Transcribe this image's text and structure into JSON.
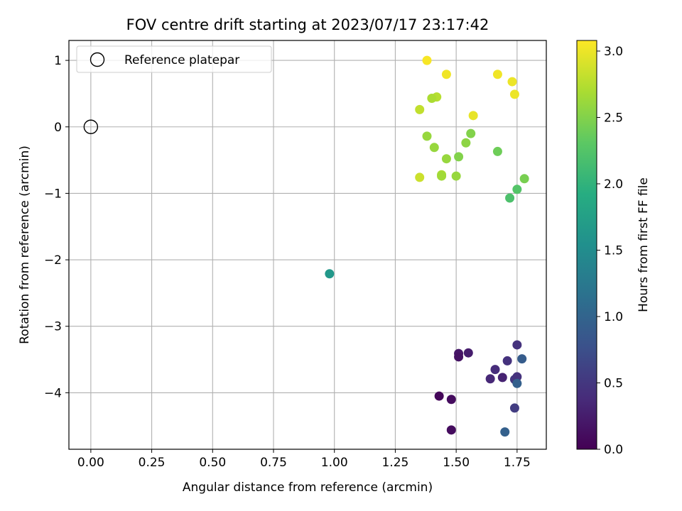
{
  "chart_data": {
    "type": "scatter",
    "title": "FOV centre drift starting at 2023/07/17 23:17:42",
    "xlabel": "Angular distance from reference (arcmin)",
    "ylabel": "Rotation from reference (arcmin)",
    "xlim": [
      -0.09,
      1.87
    ],
    "ylim": [
      -4.85,
      1.3
    ],
    "xticks": [
      0.0,
      0.25,
      0.5,
      0.75,
      1.0,
      1.25,
      1.5,
      1.75
    ],
    "xtick_labels": [
      "0.00",
      "0.25",
      "0.50",
      "0.75",
      "1.00",
      "1.25",
      "1.50",
      "1.75"
    ],
    "yticks": [
      1,
      0,
      -1,
      -2,
      -3,
      -4
    ],
    "ytick_labels": [
      "1",
      "0",
      "−1",
      "−2",
      "−3",
      "−4"
    ],
    "grid": true,
    "legend": {
      "location": "upper-left",
      "entries": [
        "Reference platepar"
      ]
    },
    "reference_point": {
      "x": 0.0,
      "y": 0.0,
      "label": "Reference platepar"
    },
    "colorbar": {
      "label": "Hours from first FF file",
      "colormap": "viridis",
      "range": [
        0.0,
        3.08
      ],
      "ticks": [
        0.0,
        0.5,
        1.0,
        1.5,
        2.0,
        2.5,
        3.0
      ],
      "tick_labels": [
        "0.0",
        "0.5",
        "1.0",
        "1.5",
        "2.0",
        "2.5",
        "3.0"
      ]
    },
    "points": [
      {
        "x": 1.38,
        "y": 1.0,
        "hours": 3.05
      },
      {
        "x": 1.46,
        "y": 0.79,
        "hours": 3.02
      },
      {
        "x": 1.67,
        "y": 0.79,
        "hours": 3.02
      },
      {
        "x": 1.73,
        "y": 0.68,
        "hours": 3.0
      },
      {
        "x": 1.74,
        "y": 0.49,
        "hours": 3.0
      },
      {
        "x": 1.42,
        "y": 0.45,
        "hours": 2.75
      },
      {
        "x": 1.4,
        "y": 0.43,
        "hours": 2.7
      },
      {
        "x": 1.35,
        "y": 0.26,
        "hours": 2.8
      },
      {
        "x": 1.57,
        "y": 0.17,
        "hours": 2.98
      },
      {
        "x": 1.38,
        "y": -0.14,
        "hours": 2.6
      },
      {
        "x": 1.56,
        "y": -0.1,
        "hours": 2.5
      },
      {
        "x": 1.54,
        "y": -0.24,
        "hours": 2.55
      },
      {
        "x": 1.41,
        "y": -0.31,
        "hours": 2.6
      },
      {
        "x": 1.51,
        "y": -0.45,
        "hours": 2.5
      },
      {
        "x": 1.46,
        "y": -0.48,
        "hours": 2.6
      },
      {
        "x": 1.67,
        "y": -0.37,
        "hours": 2.4
      },
      {
        "x": 1.35,
        "y": -0.76,
        "hours": 2.85
      },
      {
        "x": 1.44,
        "y": -0.72,
        "hours": 2.7
      },
      {
        "x": 1.44,
        "y": -0.74,
        "hours": 2.65
      },
      {
        "x": 1.5,
        "y": -0.74,
        "hours": 2.6
      },
      {
        "x": 1.78,
        "y": -0.78,
        "hours": 2.45
      },
      {
        "x": 1.75,
        "y": -0.94,
        "hours": 2.25
      },
      {
        "x": 1.72,
        "y": -1.07,
        "hours": 2.2
      },
      {
        "x": 0.98,
        "y": -2.21,
        "hours": 1.65
      },
      {
        "x": 1.75,
        "y": -3.28,
        "hours": 0.45
      },
      {
        "x": 1.77,
        "y": -3.49,
        "hours": 0.9
      },
      {
        "x": 1.51,
        "y": -3.41,
        "hours": 0.2
      },
      {
        "x": 1.55,
        "y": -3.4,
        "hours": 0.25
      },
      {
        "x": 1.51,
        "y": -3.46,
        "hours": 0.15
      },
      {
        "x": 1.71,
        "y": -3.52,
        "hours": 0.45
      },
      {
        "x": 1.66,
        "y": -3.65,
        "hours": 0.4
      },
      {
        "x": 1.64,
        "y": -3.79,
        "hours": 0.35
      },
      {
        "x": 1.69,
        "y": -3.77,
        "hours": 0.3
      },
      {
        "x": 1.74,
        "y": -3.8,
        "hours": 0.5
      },
      {
        "x": 1.75,
        "y": -3.76,
        "hours": 0.45
      },
      {
        "x": 1.75,
        "y": -3.86,
        "hours": 0.95
      },
      {
        "x": 1.43,
        "y": -4.05,
        "hours": 0.05
      },
      {
        "x": 1.48,
        "y": -4.1,
        "hours": 0.1
      },
      {
        "x": 1.74,
        "y": -4.23,
        "hours": 0.55
      },
      {
        "x": 1.48,
        "y": -4.56,
        "hours": 0.1
      },
      {
        "x": 1.7,
        "y": -4.59,
        "hours": 0.95
      }
    ]
  }
}
